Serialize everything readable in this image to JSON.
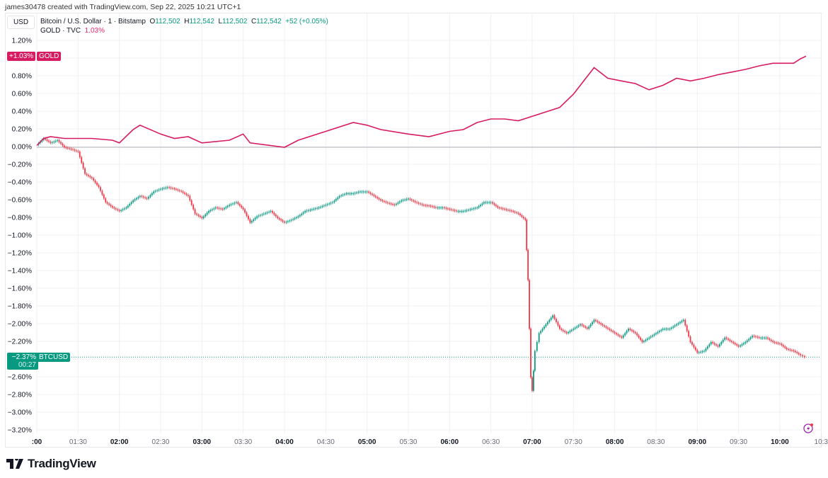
{
  "credit": "james30478 created with TradingView.com, Sep 22, 2025 10:21 UTC+1",
  "currency_button": "USD",
  "legend": {
    "btc_title": "Bitcoin / U.S. Dollar · 1 · Bitstamp",
    "o_label": "O",
    "o": "112,502",
    "h_label": "H",
    "h": "112,542",
    "l_label": "L",
    "l": "112,502",
    "c_label": "C",
    "c": "112,542",
    "change": "+52 (+0.05%)",
    "gold_title": "GOLD · TVC",
    "gold_value": "1.03%"
  },
  "markers": {
    "gold_value": "+1.03%",
    "gold_name": "GOLD",
    "btc_value": "−2.37%",
    "btc_countdown": "00:27",
    "btc_name": "BTCUSD"
  },
  "brand": "TradingView",
  "colors": {
    "up": "#089981",
    "down": "#f23645",
    "gold": "#d81b60",
    "grid": "#f0f0f3"
  },
  "chart_data": [
    {
      "type": "line",
      "yaxis_position": "left",
      "ylim": [
        -3.25,
        1.3
      ],
      "yticks": [
        "1.20%",
        "1.00%",
        "0.80%",
        "0.60%",
        "0.40%",
        "0.20%",
        "0.00%",
        "−0.20%",
        "−0.40%",
        "−0.60%",
        "−0.80%",
        "−1.00%",
        "−1.20%",
        "−1.40%",
        "−1.60%",
        "−1.80%",
        "−2.00%",
        "−2.20%",
        "−2.40%",
        "−2.60%",
        "−2.80%",
        "−3.00%",
        "−3.20%"
      ],
      "xticks": [
        {
          "label": ":00",
          "bold": true
        },
        {
          "label": "01:30"
        },
        {
          "label": "02:00",
          "bold": true
        },
        {
          "label": "02:30"
        },
        {
          "label": "03:00",
          "bold": true
        },
        {
          "label": "03:30"
        },
        {
          "label": "04:00",
          "bold": true
        },
        {
          "label": "04:30"
        },
        {
          "label": "05:00",
          "bold": true
        },
        {
          "label": "05:30"
        },
        {
          "label": "06:00",
          "bold": true
        },
        {
          "label": "06:30"
        },
        {
          "label": "07:00",
          "bold": true
        },
        {
          "label": "07:30"
        },
        {
          "label": "08:00",
          "bold": true
        },
        {
          "label": "08:30"
        },
        {
          "label": "09:00",
          "bold": true
        },
        {
          "label": "09:30"
        },
        {
          "label": "10:00",
          "bold": true
        },
        {
          "label": "10:3"
        }
      ],
      "series": [
        {
          "name": "GOLD",
          "style": "line",
          "x": [
            "01:00",
            "01:05",
            "01:10",
            "01:20",
            "01:30",
            "01:40",
            "01:55",
            "02:00",
            "02:10",
            "02:15",
            "02:30",
            "02:40",
            "02:50",
            "03:00",
            "03:20",
            "03:30",
            "03:35",
            "03:50",
            "04:00",
            "04:10",
            "04:30",
            "04:50",
            "05:00",
            "05:10",
            "05:30",
            "05:45",
            "06:00",
            "06:10",
            "06:20",
            "06:30",
            "06:40",
            "06:50",
            "07:00",
            "07:10",
            "07:20",
            "07:30",
            "07:40",
            "07:45",
            "07:55",
            "08:05",
            "08:15",
            "08:25",
            "08:35",
            "08:45",
            "08:55",
            "09:05",
            "09:15",
            "09:25",
            "09:35",
            "09:45",
            "09:55",
            "10:00",
            "10:10",
            "10:15",
            "10:19"
          ],
          "y": [
            0.02,
            0.1,
            0.12,
            0.1,
            0.1,
            0.1,
            0.08,
            0.05,
            0.2,
            0.25,
            0.15,
            0.1,
            0.12,
            0.05,
            0.08,
            0.15,
            0.05,
            0.02,
            0.0,
            0.08,
            0.18,
            0.28,
            0.25,
            0.2,
            0.15,
            0.12,
            0.18,
            0.2,
            0.28,
            0.32,
            0.32,
            0.3,
            0.35,
            0.4,
            0.45,
            0.6,
            0.8,
            0.9,
            0.78,
            0.75,
            0.72,
            0.65,
            0.7,
            0.78,
            0.75,
            0.78,
            0.82,
            0.85,
            0.88,
            0.92,
            0.95,
            0.95,
            0.95,
            1.0,
            1.03
          ]
        },
        {
          "name": "BTCUSD",
          "style": "candles",
          "x": [
            "01:00",
            "01:05",
            "01:10",
            "01:15",
            "01:20",
            "01:25",
            "01:30",
            "01:35",
            "01:40",
            "01:45",
            "01:50",
            "01:55",
            "02:00",
            "02:05",
            "02:10",
            "02:15",
            "02:20",
            "02:25",
            "02:30",
            "02:35",
            "02:40",
            "02:45",
            "02:50",
            "02:55",
            "03:00",
            "03:05",
            "03:10",
            "03:15",
            "03:20",
            "03:25",
            "03:30",
            "03:35",
            "03:40",
            "03:45",
            "03:50",
            "03:55",
            "04:00",
            "04:05",
            "04:10",
            "04:15",
            "04:20",
            "04:25",
            "04:30",
            "04:35",
            "04:40",
            "04:45",
            "04:50",
            "04:55",
            "05:00",
            "05:05",
            "05:10",
            "05:15",
            "05:20",
            "05:25",
            "05:30",
            "05:35",
            "05:40",
            "05:45",
            "05:50",
            "05:55",
            "06:00",
            "06:05",
            "06:10",
            "06:15",
            "06:20",
            "06:25",
            "06:30",
            "06:35",
            "06:40",
            "06:45",
            "06:50",
            "06:55",
            "06:57",
            "06:59",
            "07:00",
            "07:02",
            "07:05",
            "07:10",
            "07:15",
            "07:20",
            "07:25",
            "07:30",
            "07:35",
            "07:40",
            "07:45",
            "07:50",
            "07:55",
            "08:00",
            "08:05",
            "08:10",
            "08:15",
            "08:20",
            "08:25",
            "08:30",
            "08:35",
            "08:40",
            "08:45",
            "08:50",
            "08:55",
            "09:00",
            "09:05",
            "09:10",
            "09:15",
            "09:20",
            "09:25",
            "09:30",
            "09:35",
            "09:40",
            "09:45",
            "09:50",
            "09:55",
            "10:00",
            "10:05",
            "10:10",
            "10:15",
            "10:18"
          ],
          "y": [
            0.03,
            0.1,
            0.05,
            0.08,
            0.0,
            -0.02,
            -0.05,
            -0.3,
            -0.35,
            -0.45,
            -0.62,
            -0.68,
            -0.72,
            -0.68,
            -0.6,
            -0.55,
            -0.58,
            -0.5,
            -0.47,
            -0.45,
            -0.47,
            -0.5,
            -0.55,
            -0.75,
            -0.8,
            -0.72,
            -0.68,
            -0.7,
            -0.65,
            -0.62,
            -0.7,
            -0.85,
            -0.78,
            -0.75,
            -0.72,
            -0.8,
            -0.85,
            -0.82,
            -0.78,
            -0.72,
            -0.7,
            -0.68,
            -0.65,
            -0.62,
            -0.55,
            -0.52,
            -0.52,
            -0.5,
            -0.5,
            -0.55,
            -0.6,
            -0.63,
            -0.65,
            -0.6,
            -0.58,
            -0.62,
            -0.65,
            -0.66,
            -0.68,
            -0.68,
            -0.7,
            -0.72,
            -0.72,
            -0.7,
            -0.68,
            -0.62,
            -0.62,
            -0.68,
            -0.7,
            -0.72,
            -0.75,
            -0.82,
            -1.5,
            -2.6,
            -2.75,
            -2.3,
            -2.1,
            -2.0,
            -1.9,
            -2.05,
            -2.1,
            -2.05,
            -2.0,
            -2.05,
            -1.95,
            -2.0,
            -2.05,
            -2.1,
            -2.15,
            -2.05,
            -2.1,
            -2.2,
            -2.15,
            -2.1,
            -2.05,
            -2.05,
            -2.0,
            -1.95,
            -2.2,
            -2.32,
            -2.3,
            -2.2,
            -2.25,
            -2.15,
            -2.2,
            -2.25,
            -2.2,
            -2.13,
            -2.15,
            -2.15,
            -2.2,
            -2.22,
            -2.28,
            -2.3,
            -2.35,
            -2.37
          ]
        }
      ]
    }
  ]
}
